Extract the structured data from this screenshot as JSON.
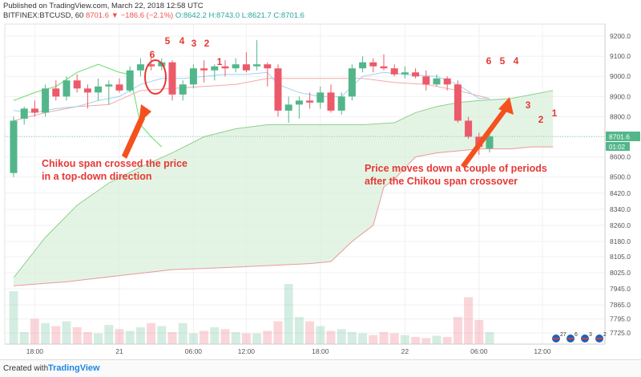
{
  "header": {
    "published": "Published on TradingView.com, March 22, 2018 12:58 UTC",
    "symbol": "BITFINEX:BTCUSD, 60",
    "change": "8701.6 ▼ −186.6 (−2.1%)",
    "ohlc": "O:8642.2 H:8743.0 L:8621.7 C:8701.6"
  },
  "footer": {
    "created_with": "Created with",
    "brand": "TradingView"
  },
  "colors": {
    "up": "#52b68a",
    "down": "#ec5a6a",
    "cloud": "#d9efd9",
    "chikou": "#7ee07e",
    "kijun": "#f4a8a8",
    "tenkan": "#9fd3f0"
  },
  "chart_data": {
    "type": "candlestick",
    "symbol": "BITFINEX:BTCUSD",
    "timeframe": "60",
    "ylim": [
      7670,
      9260
    ],
    "y_ticks": [
      9200.0,
      9100.0,
      9000.0,
      8900.0,
      8800.0,
      8700.0,
      8600.0,
      8500.0,
      8420.0,
      8340.0,
      8260.0,
      8180.0,
      8105.0,
      8025.0,
      7945.0,
      7865.0,
      7795.0,
      7725.0
    ],
    "x_ticks": [
      "18:00",
      "21",
      "06:00",
      "12:00",
      "18:00",
      "22",
      "06:00",
      "12:00"
    ],
    "last_price_label": "8701.6",
    "countdown_label": "01:02",
    "candles": [
      {
        "o": 8520,
        "h": 8800,
        "l": 8500,
        "c": 8780
      },
      {
        "o": 8790,
        "h": 8850,
        "l": 8760,
        "c": 8840
      },
      {
        "o": 8840,
        "h": 8880,
        "l": 8800,
        "c": 8820
      },
      {
        "o": 8820,
        "h": 8960,
        "l": 8800,
        "c": 8940
      },
      {
        "o": 8940,
        "h": 8980,
        "l": 8880,
        "c": 8900
      },
      {
        "o": 8900,
        "h": 9000,
        "l": 8880,
        "c": 8980
      },
      {
        "o": 8980,
        "h": 9010,
        "l": 8920,
        "c": 8940
      },
      {
        "o": 8940,
        "h": 8960,
        "l": 8840,
        "c": 8920
      },
      {
        "o": 8920,
        "h": 8990,
        "l": 8880,
        "c": 8950
      },
      {
        "o": 8950,
        "h": 8980,
        "l": 8860,
        "c": 8960
      },
      {
        "o": 8960,
        "h": 8990,
        "l": 8920,
        "c": 8930
      },
      {
        "o": 8930,
        "h": 9050,
        "l": 8920,
        "c": 9030
      },
      {
        "o": 9030,
        "h": 9090,
        "l": 9000,
        "c": 9060
      },
      {
        "o": 9060,
        "h": 9110,
        "l": 9030,
        "c": 9050
      },
      {
        "o": 9050,
        "h": 9090,
        "l": 9030,
        "c": 9070
      },
      {
        "o": 9070,
        "h": 9080,
        "l": 8880,
        "c": 8910
      },
      {
        "o": 8910,
        "h": 8980,
        "l": 8880,
        "c": 8960
      },
      {
        "o": 8960,
        "h": 9060,
        "l": 8940,
        "c": 9040
      },
      {
        "o": 9040,
        "h": 9080,
        "l": 8970,
        "c": 9030
      },
      {
        "o": 9030,
        "h": 9060,
        "l": 8980,
        "c": 9050
      },
      {
        "o": 9050,
        "h": 9080,
        "l": 9000,
        "c": 9040
      },
      {
        "o": 9040,
        "h": 9090,
        "l": 9020,
        "c": 9060
      },
      {
        "o": 9060,
        "h": 9120,
        "l": 9020,
        "c": 9030
      },
      {
        "o": 9050,
        "h": 9180,
        "l": 9030,
        "c": 9060
      },
      {
        "o": 9060,
        "h": 9070,
        "l": 8950,
        "c": 9040
      },
      {
        "o": 9040,
        "h": 9060,
        "l": 8800,
        "c": 8830
      },
      {
        "o": 8830,
        "h": 8900,
        "l": 8770,
        "c": 8860
      },
      {
        "o": 8860,
        "h": 8900,
        "l": 8790,
        "c": 8880
      },
      {
        "o": 8880,
        "h": 8920,
        "l": 8840,
        "c": 8870
      },
      {
        "o": 8870,
        "h": 8950,
        "l": 8840,
        "c": 8920
      },
      {
        "o": 8920,
        "h": 8960,
        "l": 8820,
        "c": 8830
      },
      {
        "o": 8830,
        "h": 8920,
        "l": 8810,
        "c": 8900
      },
      {
        "o": 8900,
        "h": 9060,
        "l": 8880,
        "c": 9040
      },
      {
        "o": 9040,
        "h": 9100,
        "l": 9020,
        "c": 9070
      },
      {
        "o": 9070,
        "h": 9090,
        "l": 9020,
        "c": 9050
      },
      {
        "o": 9050,
        "h": 9110,
        "l": 9030,
        "c": 9040
      },
      {
        "o": 9040,
        "h": 9060,
        "l": 9000,
        "c": 9010
      },
      {
        "o": 9010,
        "h": 9050,
        "l": 8990,
        "c": 9020
      },
      {
        "o": 9020,
        "h": 9040,
        "l": 8990,
        "c": 9000
      },
      {
        "o": 9000,
        "h": 9030,
        "l": 8930,
        "c": 8960
      },
      {
        "o": 8960,
        "h": 9010,
        "l": 8950,
        "c": 8990
      },
      {
        "o": 8990,
        "h": 9000,
        "l": 8930,
        "c": 8960
      },
      {
        "o": 8960,
        "h": 8980,
        "l": 8770,
        "c": 8780
      },
      {
        "o": 8780,
        "h": 8800,
        "l": 8690,
        "c": 8700
      },
      {
        "o": 8700,
        "h": 8720,
        "l": 8610,
        "c": 8650
      },
      {
        "o": 8642,
        "h": 8743,
        "l": 8622,
        "c": 8702
      }
    ],
    "volume": [
      88,
      20,
      42,
      35,
      30,
      38,
      28,
      20,
      18,
      32,
      25,
      22,
      28,
      35,
      30,
      20,
      35,
      18,
      22,
      28,
      25,
      20,
      18,
      18,
      22,
      38,
      100,
      45,
      38,
      30,
      22,
      25,
      20,
      18,
      15,
      20,
      18,
      15,
      12,
      10,
      14,
      12,
      45,
      78,
      40,
      20
    ],
    "tenkan": [
      [
        0,
        8830
      ],
      [
        2,
        8820
      ],
      [
        4,
        8840
      ],
      [
        6,
        8850
      ],
      [
        8,
        8880
      ],
      [
        10,
        8900
      ],
      [
        12,
        8960
      ],
      [
        14,
        8990
      ],
      [
        16,
        8990
      ],
      [
        18,
        9000
      ],
      [
        20,
        9010
      ],
      [
        22,
        9010
      ],
      [
        24,
        9020
      ],
      [
        25,
        8960
      ],
      [
        27,
        8920
      ],
      [
        29,
        8900
      ],
      [
        31,
        8900
      ],
      [
        33,
        9000
      ],
      [
        35,
        9020
      ],
      [
        37,
        9010
      ],
      [
        40,
        9000
      ],
      [
        42,
        8960
      ],
      [
        44,
        8890
      ],
      [
        45,
        8890
      ]
    ],
    "kijun": [
      [
        0,
        8780
      ],
      [
        3,
        8820
      ],
      [
        6,
        8850
      ],
      [
        9,
        8860
      ],
      [
        12,
        8930
      ],
      [
        15,
        8940
      ],
      [
        18,
        8950
      ],
      [
        21,
        8960
      ],
      [
        24,
        8990
      ],
      [
        26,
        8990
      ],
      [
        28,
        8990
      ],
      [
        30,
        8990
      ],
      [
        33,
        8990
      ],
      [
        36,
        8970
      ],
      [
        39,
        8960
      ],
      [
        42,
        8930
      ],
      [
        45,
        8890
      ]
    ],
    "chikou": [
      [
        0,
        8880
      ],
      [
        2,
        8920
      ],
      [
        4,
        8950
      ],
      [
        6,
        9020
      ],
      [
        8,
        9060
      ],
      [
        10,
        9020
      ],
      [
        11,
        9010
      ],
      [
        12,
        8760
      ],
      [
        13,
        8700
      ],
      [
        14,
        8650
      ]
    ],
    "cloud_top": [
      [
        0,
        8000
      ],
      [
        3,
        8200
      ],
      [
        6,
        8360
      ],
      [
        9,
        8470
      ],
      [
        12,
        8550
      ],
      [
        15,
        8620
      ],
      [
        18,
        8700
      ],
      [
        21,
        8740
      ],
      [
        24,
        8760
      ],
      [
        27,
        8760
      ],
      [
        30,
        8760
      ],
      [
        33,
        8760
      ],
      [
        36,
        8770
      ],
      [
        38,
        8820
      ],
      [
        40,
        8850
      ],
      [
        42,
        8870
      ],
      [
        44,
        8880
      ],
      [
        47,
        8890
      ],
      [
        49,
        8910
      ],
      [
        51,
        8930
      ]
    ],
    "cloud_bottom": [
      [
        0,
        7960
      ],
      [
        5,
        7980
      ],
      [
        10,
        8010
      ],
      [
        15,
        8040
      ],
      [
        20,
        8050
      ],
      [
        24,
        8060
      ],
      [
        28,
        8070
      ],
      [
        30,
        8080
      ],
      [
        32,
        8180
      ],
      [
        34,
        8260
      ],
      [
        35,
        8450
      ],
      [
        36,
        8490
      ],
      [
        38,
        8600
      ],
      [
        40,
        8620
      ],
      [
        42,
        8630
      ],
      [
        44,
        8640
      ],
      [
        47,
        8640
      ],
      [
        49,
        8650
      ],
      [
        51,
        8650
      ]
    ],
    "annotations": [
      {
        "text": "Chikou span crossed the price",
        "text2": "in a top-down direction"
      },
      {
        "text": "Price moves down a couple of periods",
        "text2": "after the Chikou span crossover"
      }
    ],
    "numbers_left": [
      "6",
      "5",
      "4",
      "3",
      "2",
      "1"
    ],
    "numbers_right": [
      "6",
      "5",
      "4",
      "3",
      "2",
      "1"
    ],
    "events": [
      {
        "label": "27",
        "count": ""
      },
      {
        "label": "6",
        "count": ""
      },
      {
        "label": "3",
        "count": ""
      },
      {
        "label": "2",
        "count": ""
      }
    ]
  }
}
